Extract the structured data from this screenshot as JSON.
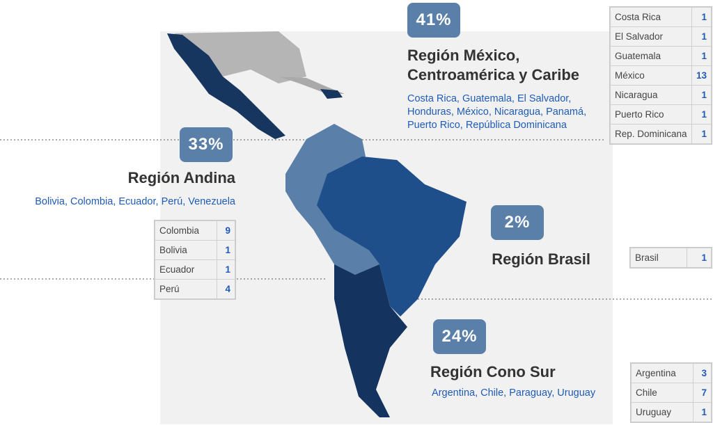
{
  "regions": [
    {
      "percent": "41%",
      "title_lines": [
        "Región México,",
        "Centroamérica y Caribe"
      ],
      "countries": "Costa Rica, Guatemala, El Salvador, Honduras, México, Nicaragua, Panamá, Puerto Rico, República Dominicana",
      "table": [
        [
          "Costa Rica",
          1
        ],
        [
          "El Salvador",
          1
        ],
        [
          "Guatemala",
          1
        ],
        [
          "México",
          13
        ],
        [
          "Nicaragua",
          1
        ],
        [
          "Puerto Rico",
          1
        ],
        [
          "Rep. Dominicana",
          1
        ]
      ]
    },
    {
      "percent": "33%",
      "title_lines": [
        "Región Andina"
      ],
      "countries": "Bolivia, Colombia, Ecuador, Perú, Venezuela",
      "table": [
        [
          "Colombia",
          9
        ],
        [
          "Bolivia",
          1
        ],
        [
          "Ecuador",
          1
        ],
        [
          "Perú",
          4
        ]
      ]
    },
    {
      "percent": "2%",
      "title_lines": [
        "Región Brasil"
      ],
      "table": [
        [
          "Brasil",
          1
        ]
      ]
    },
    {
      "percent": "24%",
      "title_lines": [
        "Región Cono Sur"
      ],
      "countries": "Argentina, Chile, Paraguay, Uruguay",
      "table": [
        [
          "Argentina",
          3
        ],
        [
          "Chile",
          7
        ],
        [
          "Uruguay",
          1
        ]
      ]
    }
  ]
}
